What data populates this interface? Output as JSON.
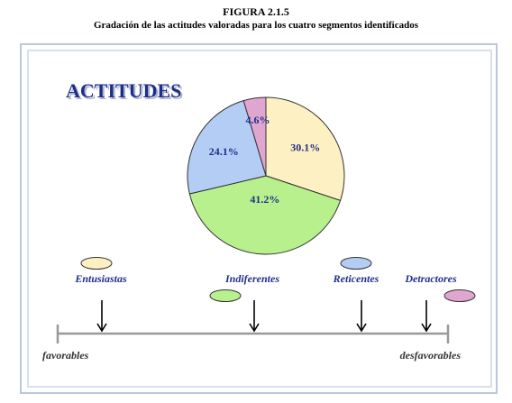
{
  "figure": {
    "title": "FIGURA 2.1.5",
    "subtitle": "Gradación de las actitudes valoradas para los cuatro segmentos identificados"
  },
  "colors": {
    "title_blue": "#1f2f8a",
    "frame": "#b9c8dd",
    "axis": "#999999"
  },
  "chart_data": {
    "type": "pie",
    "title": "ACTITUDES",
    "slices": [
      {
        "name": "Entusiastas",
        "value": 30.1,
        "label": "30.1%",
        "color": "#fdf0c2"
      },
      {
        "name": "Indiferentes",
        "value": 41.2,
        "label": "41.2%",
        "color": "#b7f08c"
      },
      {
        "name": "Reticentes",
        "value": 24.1,
        "label": "24.1%",
        "color": "#b3cdf5"
      },
      {
        "name": "Detractores",
        "value": 4.6,
        "label": "4.6%",
        "color": "#e0a6cf"
      }
    ]
  },
  "scale": {
    "left_label": "favorables",
    "right_label": "desfavorables",
    "segments": [
      {
        "name": "Entusiastas"
      },
      {
        "name": "Indiferentes"
      },
      {
        "name": "Reticentes"
      },
      {
        "name": "Detractores"
      }
    ]
  }
}
